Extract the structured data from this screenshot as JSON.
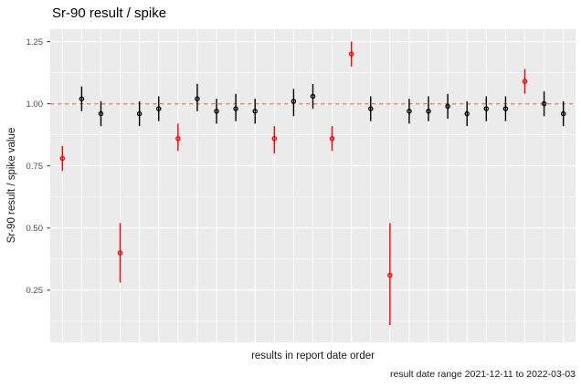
{
  "chart_data": {
    "type": "scatter",
    "subtype": "pointrange",
    "title": "Sr-90 result / spike",
    "ylabel": "Sr-90 result / spike value",
    "xlabel": "results in report date order",
    "caption": "result date range 2021-12-11 to 2022-03-03",
    "ylim": [
      0.04,
      1.3
    ],
    "yticks": [
      {
        "label": "1.25",
        "value": 1.25
      },
      {
        "label": "1.00",
        "value": 1.0
      },
      {
        "label": "0.75",
        "value": 0.75
      },
      {
        "label": "0.50",
        "value": 0.5
      },
      {
        "label": "0.25",
        "value": 0.25
      }
    ],
    "yminor": [
      1.125,
      0.875,
      0.625,
      0.375,
      0.125
    ],
    "grid": true,
    "legend": "none",
    "reference_line": {
      "y": 1.0,
      "style": "dashed",
      "color": "#E8846C"
    },
    "colors": {
      "normal_point": "#000000",
      "flagged_point": "#FF0000",
      "panel_bg": "#EBEBEB",
      "grid": "#FFFFFF",
      "tick_text": "#4D4D4D",
      "axis_tick": "#333333"
    },
    "points": [
      {
        "i": 1,
        "y": 0.78,
        "lo": 0.73,
        "hi": 0.83,
        "flagged": true
      },
      {
        "i": 2,
        "y": 1.02,
        "lo": 0.97,
        "hi": 1.07,
        "flagged": false
      },
      {
        "i": 3,
        "y": 0.96,
        "lo": 0.91,
        "hi": 1.01,
        "flagged": false
      },
      {
        "i": 4,
        "y": 0.4,
        "lo": 0.28,
        "hi": 0.52,
        "flagged": true
      },
      {
        "i": 5,
        "y": 0.96,
        "lo": 0.91,
        "hi": 1.01,
        "flagged": false
      },
      {
        "i": 6,
        "y": 0.98,
        "lo": 0.93,
        "hi": 1.03,
        "flagged": false
      },
      {
        "i": 7,
        "y": 0.86,
        "lo": 0.81,
        "hi": 0.92,
        "flagged": true
      },
      {
        "i": 8,
        "y": 1.02,
        "lo": 0.97,
        "hi": 1.08,
        "flagged": false
      },
      {
        "i": 9,
        "y": 0.97,
        "lo": 0.92,
        "hi": 1.02,
        "flagged": false
      },
      {
        "i": 10,
        "y": 0.98,
        "lo": 0.93,
        "hi": 1.04,
        "flagged": false
      },
      {
        "i": 11,
        "y": 0.97,
        "lo": 0.92,
        "hi": 1.02,
        "flagged": false
      },
      {
        "i": 12,
        "y": 0.86,
        "lo": 0.8,
        "hi": 0.91,
        "flagged": true
      },
      {
        "i": 13,
        "y": 1.01,
        "lo": 0.95,
        "hi": 1.06,
        "flagged": false
      },
      {
        "i": 14,
        "y": 1.03,
        "lo": 0.98,
        "hi": 1.08,
        "flagged": false
      },
      {
        "i": 15,
        "y": 0.86,
        "lo": 0.81,
        "hi": 0.91,
        "flagged": true
      },
      {
        "i": 16,
        "y": 1.2,
        "lo": 1.15,
        "hi": 1.25,
        "flagged": true
      },
      {
        "i": 17,
        "y": 0.98,
        "lo": 0.93,
        "hi": 1.03,
        "flagged": false
      },
      {
        "i": 18,
        "y": 0.31,
        "lo": 0.11,
        "hi": 0.52,
        "flagged": true
      },
      {
        "i": 19,
        "y": 0.97,
        "lo": 0.92,
        "hi": 1.02,
        "flagged": false
      },
      {
        "i": 20,
        "y": 0.97,
        "lo": 0.93,
        "hi": 1.03,
        "flagged": false
      },
      {
        "i": 21,
        "y": 0.99,
        "lo": 0.94,
        "hi": 1.04,
        "flagged": false
      },
      {
        "i": 22,
        "y": 0.96,
        "lo": 0.91,
        "hi": 1.01,
        "flagged": false
      },
      {
        "i": 23,
        "y": 0.98,
        "lo": 0.93,
        "hi": 1.03,
        "flagged": false
      },
      {
        "i": 24,
        "y": 0.98,
        "lo": 0.93,
        "hi": 1.03,
        "flagged": false
      },
      {
        "i": 25,
        "y": 1.09,
        "lo": 1.04,
        "hi": 1.14,
        "flagged": true
      },
      {
        "i": 26,
        "y": 1.0,
        "lo": 0.95,
        "hi": 1.05,
        "flagged": false
      },
      {
        "i": 27,
        "y": 0.96,
        "lo": 0.91,
        "hi": 1.01,
        "flagged": false
      }
    ]
  }
}
